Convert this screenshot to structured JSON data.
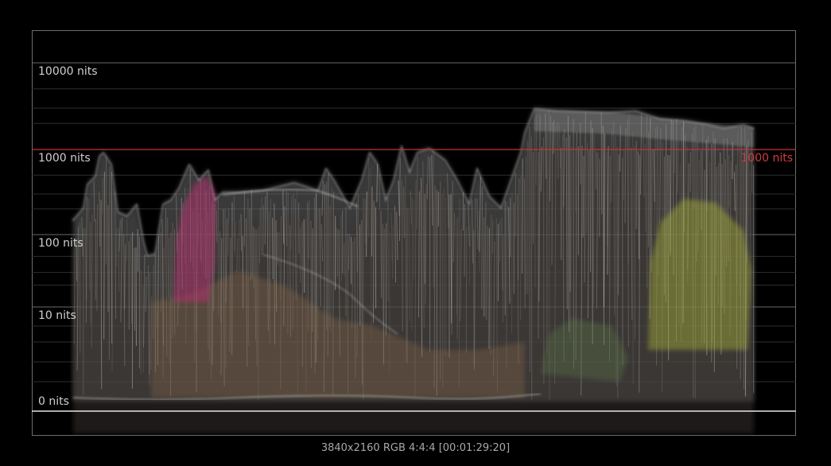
{
  "scope": {
    "type": "HDR waveform (nits)",
    "levels": [
      {
        "label": "10000 nits",
        "nits": 10000
      },
      {
        "label": "1000 nits",
        "nits": 1000
      },
      {
        "label": "100 nits",
        "nits": 100
      },
      {
        "label": "10 nits",
        "nits": 10
      },
      {
        "label": "0 nits",
        "nits": 0
      }
    ],
    "reference": {
      "label": "1000 nits",
      "nits": 1000,
      "color": "#c8323e"
    },
    "colors": {
      "background": "#000000",
      "grid_major": "#6a6a6a",
      "grid_minor": "#2e2e2e",
      "trace": "#bdbdbd",
      "trace_magenta": "#b0306e",
      "trace_yellow": "#a8b03a"
    }
  },
  "status_bar": {
    "info": "3840x2160 RGB 4:4:4 [00:01:29:20]"
  }
}
